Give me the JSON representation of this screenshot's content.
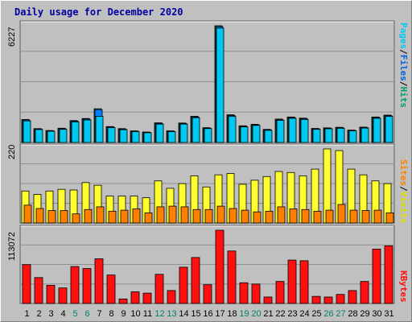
{
  "title": "Daily usage for December 2020",
  "colors": {
    "pages": "#00c8f0",
    "files": "#0080ff",
    "hits": "#00a060",
    "visits": "#ffff30",
    "sites": "#ff8000",
    "kbytes": "#ff1010",
    "weekend_label": "#00806a",
    "weekday_label": "#000000",
    "title": "#0000a0",
    "panel_bg": "#c0c0c0"
  },
  "legends": {
    "top": [
      {
        "text": "Pages",
        "color": "#00c8f0"
      },
      {
        "text": "/",
        "color": "#000000"
      },
      {
        "text": "Files",
        "color": "#0060e0"
      },
      {
        "text": "/",
        "color": "#000000"
      },
      {
        "text": "Hits",
        "color": "#00a060"
      }
    ],
    "middle": [
      {
        "text": "Sites",
        "color": "#ff8000"
      },
      {
        "text": "/",
        "color": "#000000"
      },
      {
        "text": "Visits",
        "color": "#e0e000"
      }
    ],
    "bottom": [
      {
        "text": "KBytes",
        "color": "#ff1010"
      }
    ]
  },
  "chart_data": [
    {
      "type": "bar",
      "panel": "hits-files-pages",
      "max_label": "6227",
      "ylim": [
        0,
        6227
      ],
      "grid": true,
      "categories": [
        "1",
        "2",
        "3",
        "4",
        "5",
        "6",
        "7",
        "8",
        "9",
        "10",
        "11",
        "12",
        "13",
        "14",
        "15",
        "16",
        "17",
        "18",
        "19",
        "20",
        "21",
        "22",
        "23",
        "24",
        "25",
        "26",
        "27",
        "28",
        "29",
        "30",
        "31"
      ],
      "series": [
        {
          "name": "Hits",
          "values": [
            1230,
            740,
            640,
            760,
            1170,
            1280,
            1800,
            850,
            740,
            620,
            560,
            1050,
            620,
            1040,
            1400,
            790,
            6227,
            1480,
            890,
            970,
            700,
            1250,
            1360,
            1300,
            750,
            780,
            810,
            660,
            820,
            1360,
            1460
          ]
        },
        {
          "name": "Files",
          "values": [
            1200,
            720,
            620,
            730,
            1140,
            1250,
            1750,
            820,
            710,
            600,
            540,
            1020,
            600,
            1010,
            1360,
            760,
            6180,
            1440,
            860,
            940,
            680,
            1210,
            1330,
            1270,
            730,
            760,
            790,
            640,
            800,
            1330,
            1430
          ]
        },
        {
          "name": "Pages",
          "values": [
            1150,
            690,
            600,
            700,
            1100,
            1200,
            1400,
            790,
            680,
            580,
            520,
            980,
            580,
            980,
            1320,
            740,
            6100,
            1390,
            830,
            910,
            650,
            1180,
            1290,
            1230,
            700,
            730,
            760,
            620,
            770,
            1290,
            1390
          ]
        }
      ]
    },
    {
      "type": "bar",
      "panel": "visits-sites",
      "max_label": "220",
      "ylim": [
        0,
        220
      ],
      "grid": true,
      "categories": [
        "1",
        "2",
        "3",
        "4",
        "5",
        "6",
        "7",
        "8",
        "9",
        "10",
        "11",
        "12",
        "13",
        "14",
        "15",
        "16",
        "17",
        "18",
        "19",
        "20",
        "21",
        "22",
        "23",
        "24",
        "25",
        "26",
        "27",
        "28",
        "29",
        "30",
        "31"
      ],
      "series": [
        {
          "name": "Visits",
          "values": [
            95,
            85,
            95,
            100,
            98,
            120,
            112,
            80,
            80,
            80,
            75,
            125,
            103,
            117,
            140,
            107,
            143,
            147,
            115,
            127,
            138,
            153,
            150,
            140,
            160,
            220,
            215,
            160,
            143,
            125,
            117
          ]
        },
        {
          "name": "Sites",
          "values": [
            53,
            43,
            37,
            37,
            27,
            40,
            48,
            35,
            38,
            42,
            30,
            48,
            50,
            48,
            40,
            40,
            50,
            43,
            38,
            33,
            35,
            48,
            42,
            40,
            35,
            38,
            55,
            38,
            37,
            38,
            30
          ]
        }
      ]
    },
    {
      "type": "bar",
      "panel": "kbytes",
      "max_label": "113072",
      "ylim": [
        0,
        113072
      ],
      "grid": true,
      "categories": [
        "1",
        "2",
        "3",
        "4",
        "5",
        "6",
        "7",
        "8",
        "9",
        "10",
        "11",
        "12",
        "13",
        "14",
        "15",
        "16",
        "17",
        "18",
        "19",
        "20",
        "21",
        "22",
        "23",
        "24",
        "25",
        "26",
        "27",
        "28",
        "29",
        "30",
        "31"
      ],
      "series": [
        {
          "name": "KBytes",
          "values": [
            60000,
            40000,
            28000,
            24000,
            57000,
            54000,
            69000,
            44000,
            7000,
            18000,
            16000,
            45000,
            20000,
            56000,
            71000,
            29000,
            113072,
            81000,
            32000,
            30000,
            10000,
            34000,
            67000,
            66000,
            11000,
            10000,
            14000,
            20000,
            34000,
            84000,
            89000
          ]
        }
      ]
    }
  ]
}
